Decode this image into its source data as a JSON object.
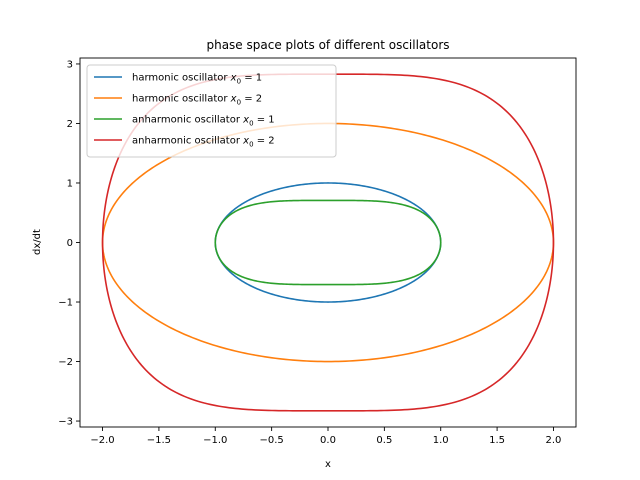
{
  "chart_data": {
    "type": "line",
    "title": "phase space plots of different oscillators",
    "xlabel": "x",
    "ylabel": "dx/dt",
    "xlim": [
      -2.2,
      2.2
    ],
    "ylim": [
      -3.1,
      3.1
    ],
    "xticks": [
      -2.0,
      -1.5,
      -1.0,
      -0.5,
      0.0,
      0.5,
      1.0,
      1.5,
      2.0
    ],
    "xtick_labels": [
      "−2.0",
      "−1.5",
      "−1.0",
      "−0.5",
      "0.0",
      "0.5",
      "1.0",
      "1.5",
      "2.0"
    ],
    "yticks": [
      -3,
      -2,
      -1,
      0,
      1,
      2,
      3
    ],
    "ytick_labels": [
      "−3",
      "−2",
      "−1",
      "0",
      "1",
      "2",
      "3"
    ],
    "grid": false,
    "legend_position": "top-left",
    "series": [
      {
        "name": "harmonic oscillator",
        "name_subscript_label": "x",
        "name_subscript": "0",
        "name_suffix": " = 1",
        "color": "#1f77b4",
        "kind": "harmonic",
        "x0": 1
      },
      {
        "name": "harmonic oscillator",
        "name_subscript_label": "x",
        "name_subscript": "0",
        "name_suffix": " = 2",
        "color": "#ff7f0e",
        "kind": "harmonic",
        "x0": 2
      },
      {
        "name": "anharmonic oscillator",
        "name_subscript_label": "x",
        "name_subscript": "0",
        "name_suffix": " = 1",
        "color": "#2ca02c",
        "kind": "quartic",
        "x0": 1
      },
      {
        "name": "anharmonic oscillator",
        "name_subscript_label": "x",
        "name_subscript": "0",
        "name_suffix": " = 2",
        "color": "#d62728",
        "kind": "quartic",
        "x0": 2
      }
    ]
  }
}
